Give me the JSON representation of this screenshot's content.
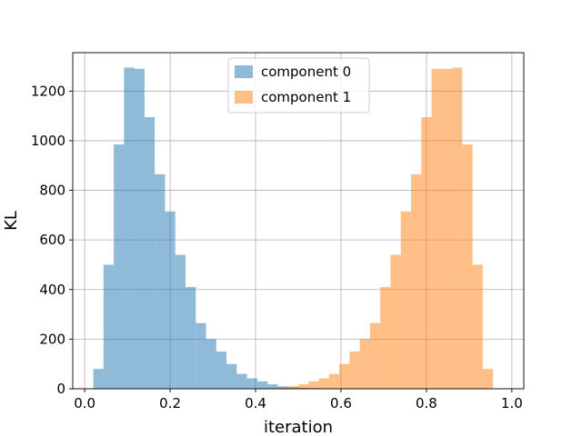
{
  "chart_data": {
    "type": "bar",
    "title": "",
    "xlabel": "iteration",
    "ylabel": "KL",
    "xlim": [
      -0.028,
      1.028
    ],
    "ylim": [
      0,
      1355
    ],
    "bin_width": 0.024,
    "x_ticks": [
      0.0,
      0.2,
      0.4,
      0.6,
      0.8,
      1.0
    ],
    "x_tick_labels": [
      "0.0",
      "0.2",
      "0.4",
      "0.6",
      "0.8",
      "1.0"
    ],
    "y_ticks": [
      0,
      200,
      400,
      600,
      800,
      1000,
      1200
    ],
    "y_tick_labels": [
      "0",
      "200",
      "400",
      "600",
      "800",
      "1000",
      "1200"
    ],
    "grid": true,
    "legend_position": "top-center",
    "series": [
      {
        "name": "component 0",
        "color": "#1f77b4",
        "alpha": 0.5,
        "bin_starts": [
          0.02,
          0.044,
          0.068,
          0.092,
          0.116,
          0.14,
          0.164,
          0.188,
          0.212,
          0.236,
          0.26,
          0.284,
          0.308,
          0.332,
          0.356,
          0.38,
          0.404,
          0.428,
          0.452,
          0.476,
          0.5,
          0.524,
          0.548,
          0.572,
          0.596,
          0.62
        ],
        "values": [
          80,
          500,
          985,
          1295,
          1290,
          1095,
          865,
          715,
          540,
          410,
          265,
          200,
          150,
          100,
          60,
          42,
          30,
          18,
          10,
          7,
          4,
          3,
          2,
          2,
          1,
          1
        ]
      },
      {
        "name": "component 1",
        "color": "#ff7f0e",
        "alpha": 0.5,
        "bin_starts": [
          0.38,
          0.404,
          0.428,
          0.452,
          0.476,
          0.5,
          0.524,
          0.548,
          0.572,
          0.596,
          0.62,
          0.644,
          0.668,
          0.692,
          0.716,
          0.74,
          0.764,
          0.788,
          0.812,
          0.836,
          0.86,
          0.884,
          0.908,
          0.932,
          0.956
        ],
        "values": [
          1,
          2,
          3,
          5,
          10,
          18,
          30,
          42,
          60,
          100,
          150,
          200,
          265,
          410,
          540,
          715,
          865,
          1095,
          1290,
          1290,
          1295,
          985,
          500,
          80,
          0
        ]
      }
    ]
  }
}
